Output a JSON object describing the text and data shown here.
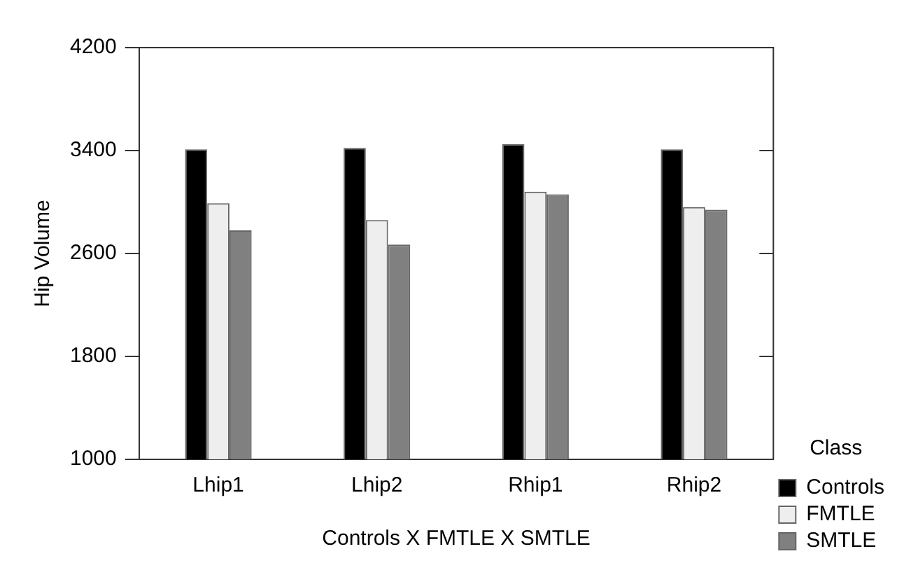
{
  "chart_data": {
    "type": "bar",
    "xlabel": "Controls X FMTLE X SMTLE",
    "ylabel": "Hip Volume",
    "legend_title": "Class",
    "categories": [
      "Lhip1",
      "Lhip2",
      "Rhip1",
      "Rhip2"
    ],
    "series": [
      {
        "name": "Controls",
        "color": "#000000",
        "values": [
          3410,
          3420,
          3450,
          3410
        ]
      },
      {
        "name": "FMTLE",
        "color": "#eeeeee",
        "values": [
          2990,
          2860,
          3080,
          2960
        ]
      },
      {
        "name": "SMTLE",
        "color": "#808080",
        "values": [
          2780,
          2670,
          3060,
          2940
        ]
      }
    ],
    "ylim": [
      1000,
      4200
    ],
    "yticks": [
      1000,
      1800,
      2600,
      3400,
      4200
    ],
    "grid": false,
    "legend": "right"
  }
}
